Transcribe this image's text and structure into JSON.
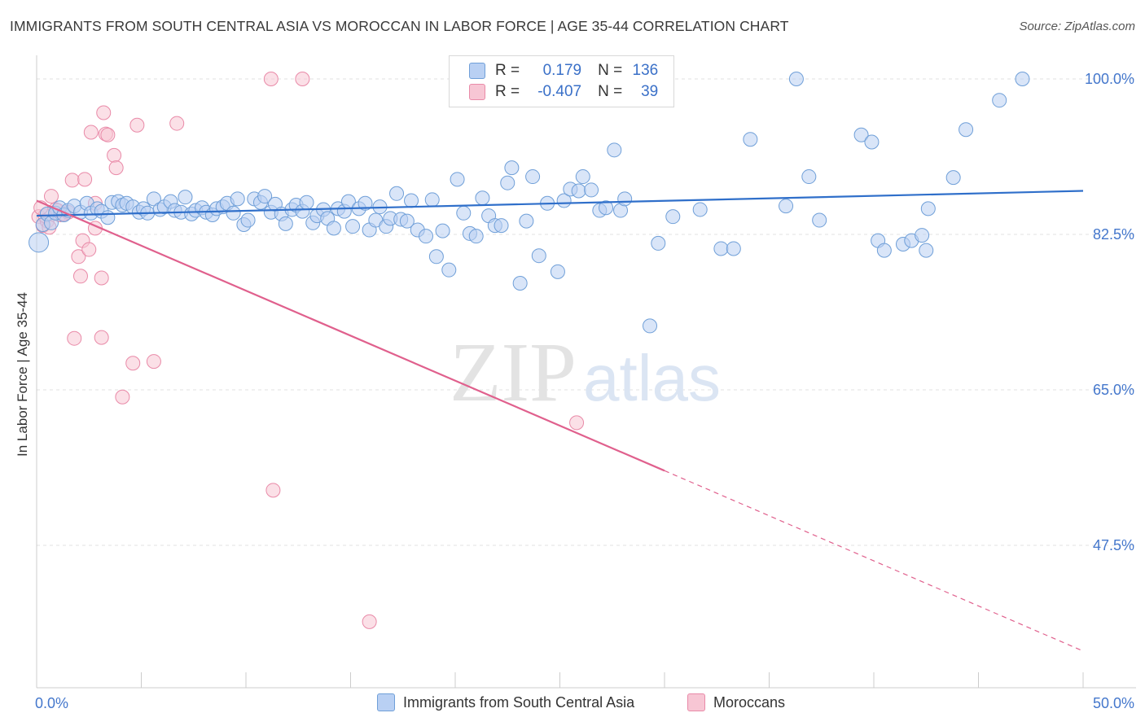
{
  "title": "IMMIGRANTS FROM SOUTH CENTRAL ASIA VS MOROCCAN IN LABOR FORCE | AGE 35-44 CORRELATION CHART",
  "source": "Source: ZipAtlas.com",
  "watermark": {
    "zip": "ZIP",
    "atlas": "atlas"
  },
  "legend_top": {
    "rows": [
      {
        "r_label": "R =",
        "r_value": "0.179",
        "n_label": "N =",
        "n_value": "136"
      },
      {
        "r_label": "R =",
        "r_value": "-0.407",
        "n_label": "N =",
        "n_value": "39"
      }
    ]
  },
  "legend_bottom": [
    "Immigrants from South Central Asia",
    "Moroccans"
  ],
  "colors": {
    "blue_fill": "#b9d0f3",
    "blue_stroke": "#6f9fd8",
    "blue_line": "#2f6fca",
    "pink_fill": "#f7c6d4",
    "pink_stroke": "#e98aa8",
    "pink_line": "#e0608d",
    "tick_label": "#4477cc",
    "grid": "#e0e0e0"
  },
  "chart_data": {
    "type": "scatter",
    "title": "IMMIGRANTS FROM SOUTH CENTRAL ASIA VS MOROCCAN IN LABOR FORCE | AGE 35-44 CORRELATION CHART",
    "xlabel": "",
    "ylabel": "In Labor Force | Age 35-44",
    "xlim": [
      0,
      50
    ],
    "ylim": [
      32.5,
      100
    ],
    "x_tick_labels": [
      "0.0%",
      "50.0%"
    ],
    "y_ticks": [
      47.5,
      65.0,
      82.5,
      100.0
    ],
    "y_tick_labels": [
      "47.5%",
      "65.0%",
      "82.5%",
      "100.0%"
    ],
    "grid": true,
    "legend_position": "top-center",
    "series": [
      {
        "name": "Immigrants from South Central Asia",
        "color": "#6f9fd8",
        "trend": {
          "x": [
            0,
            50
          ],
          "y": [
            84.6,
            87.4
          ]
        },
        "points": [
          [
            0.1,
            81.6
          ],
          [
            0.3,
            83.6
          ],
          [
            0.5,
            84.8
          ],
          [
            0.7,
            83.8
          ],
          [
            0.9,
            84.9
          ],
          [
            1.1,
            85.5
          ],
          [
            1.3,
            84.7
          ],
          [
            1.5,
            85.2
          ],
          [
            1.8,
            85.7
          ],
          [
            2.1,
            85.0
          ],
          [
            2.4,
            86.0
          ],
          [
            2.6,
            84.9
          ],
          [
            2.9,
            85.4
          ],
          [
            3.1,
            85.1
          ],
          [
            3.4,
            84.4
          ],
          [
            3.6,
            86.1
          ],
          [
            3.9,
            86.2
          ],
          [
            4.1,
            85.8
          ],
          [
            4.3,
            86.0
          ],
          [
            4.6,
            85.6
          ],
          [
            4.9,
            85.0
          ],
          [
            5.1,
            85.4
          ],
          [
            5.3,
            84.9
          ],
          [
            5.6,
            86.5
          ],
          [
            5.9,
            85.3
          ],
          [
            6.1,
            85.6
          ],
          [
            6.4,
            86.2
          ],
          [
            6.6,
            85.2
          ],
          [
            6.9,
            85.0
          ],
          [
            7.1,
            86.7
          ],
          [
            7.4,
            84.8
          ],
          [
            7.6,
            85.2
          ],
          [
            7.9,
            85.5
          ],
          [
            8.1,
            85.0
          ],
          [
            8.4,
            84.7
          ],
          [
            8.6,
            85.4
          ],
          [
            8.9,
            85.6
          ],
          [
            9.1,
            86.0
          ],
          [
            9.4,
            84.9
          ],
          [
            9.6,
            86.5
          ],
          [
            9.9,
            83.6
          ],
          [
            10.1,
            84.1
          ],
          [
            10.4,
            86.5
          ],
          [
            10.7,
            86.1
          ],
          [
            10.9,
            86.8
          ],
          [
            11.2,
            85.0
          ],
          [
            11.4,
            85.9
          ],
          [
            11.7,
            84.8
          ],
          [
            11.9,
            83.7
          ],
          [
            12.2,
            85.3
          ],
          [
            12.4,
            85.8
          ],
          [
            12.7,
            85.1
          ],
          [
            12.9,
            86.1
          ],
          [
            13.2,
            83.8
          ],
          [
            13.4,
            84.6
          ],
          [
            13.7,
            85.3
          ],
          [
            13.9,
            84.3
          ],
          [
            14.2,
            83.2
          ],
          [
            14.4,
            85.4
          ],
          [
            14.7,
            85.1
          ],
          [
            14.9,
            86.2
          ],
          [
            15.1,
            83.4
          ],
          [
            15.4,
            85.4
          ],
          [
            15.7,
            86.0
          ],
          [
            15.9,
            83.0
          ],
          [
            16.2,
            84.1
          ],
          [
            16.4,
            85.6
          ],
          [
            16.7,
            83.4
          ],
          [
            16.9,
            84.3
          ],
          [
            17.2,
            87.1
          ],
          [
            17.4,
            84.2
          ],
          [
            17.7,
            84.0
          ],
          [
            17.9,
            86.3
          ],
          [
            18.2,
            83.0
          ],
          [
            18.6,
            82.3
          ],
          [
            18.9,
            86.4
          ],
          [
            19.1,
            80.0
          ],
          [
            19.4,
            82.9
          ],
          [
            19.7,
            78.5
          ],
          [
            20.1,
            88.7
          ],
          [
            20.4,
            84.9
          ],
          [
            20.7,
            82.6
          ],
          [
            21.0,
            82.3
          ],
          [
            21.3,
            86.6
          ],
          [
            21.6,
            84.6
          ],
          [
            21.9,
            83.5
          ],
          [
            22.2,
            83.5
          ],
          [
            22.5,
            88.3
          ],
          [
            22.7,
            90.0
          ],
          [
            23.1,
            77.0
          ],
          [
            23.4,
            84.0
          ],
          [
            23.7,
            89.0
          ],
          [
            24.0,
            80.1
          ],
          [
            24.4,
            86.0
          ],
          [
            24.9,
            78.3
          ],
          [
            25.2,
            86.3
          ],
          [
            25.5,
            87.6
          ],
          [
            25.9,
            87.4
          ],
          [
            26.1,
            89.0
          ],
          [
            26.5,
            87.5
          ],
          [
            26.9,
            85.2
          ],
          [
            27.2,
            85.5
          ],
          [
            27.6,
            92.0
          ],
          [
            27.9,
            85.2
          ],
          [
            28.1,
            86.5
          ],
          [
            29.7,
            81.5
          ],
          [
            30.4,
            84.5
          ],
          [
            31.7,
            85.3
          ],
          [
            32.7,
            80.9
          ],
          [
            33.3,
            80.9
          ],
          [
            34.1,
            93.2
          ],
          [
            35.8,
            85.7
          ],
          [
            36.9,
            89.0
          ],
          [
            37.4,
            84.1
          ],
          [
            39.4,
            93.7
          ],
          [
            39.9,
            92.9
          ],
          [
            40.2,
            81.8
          ],
          [
            40.5,
            80.7
          ],
          [
            41.4,
            81.4
          ],
          [
            41.8,
            81.8
          ],
          [
            42.3,
            82.4
          ],
          [
            42.5,
            80.7
          ],
          [
            42.6,
            85.4
          ],
          [
            43.8,
            88.9
          ],
          [
            44.4,
            94.3
          ],
          [
            46.0,
            97.6
          ],
          [
            36.3,
            100.0
          ],
          [
            47.1,
            100.0
          ],
          [
            29.3,
            72.2
          ]
        ]
      },
      {
        "name": "Moroccans",
        "color": "#e98aa8",
        "trend": {
          "x": [
            0,
            30
          ],
          "y": [
            86.3,
            55.9
          ]
        },
        "trend_dashed": {
          "x": [
            30,
            50
          ],
          "y": [
            55.9,
            35.6
          ]
        },
        "points": [
          [
            0.1,
            84.5
          ],
          [
            0.3,
            83.5
          ],
          [
            0.5,
            84.0
          ],
          [
            0.7,
            86.8
          ],
          [
            0.9,
            85.3
          ],
          [
            1.1,
            84.7
          ],
          [
            1.3,
            84.8
          ],
          [
            1.5,
            85.0
          ],
          [
            1.7,
            88.6
          ],
          [
            2.0,
            80.0
          ],
          [
            2.1,
            77.8
          ],
          [
            2.2,
            81.8
          ],
          [
            2.3,
            88.7
          ],
          [
            2.5,
            80.8
          ],
          [
            2.6,
            94.0
          ],
          [
            2.8,
            83.2
          ],
          [
            2.8,
            86.0
          ],
          [
            3.1,
            77.6
          ],
          [
            3.2,
            96.2
          ],
          [
            3.3,
            93.8
          ],
          [
            3.4,
            93.7
          ],
          [
            3.7,
            91.4
          ],
          [
            3.8,
            90.0
          ],
          [
            3.1,
            70.9
          ],
          [
            4.8,
            94.8
          ],
          [
            6.7,
            95.0
          ],
          [
            1.8,
            70.8
          ],
          [
            4.6,
            68.0
          ],
          [
            5.6,
            68.2
          ],
          [
            4.1,
            64.2
          ],
          [
            11.2,
            100.0
          ],
          [
            12.7,
            100.0
          ],
          [
            11.3,
            53.7
          ],
          [
            15.9,
            38.9
          ],
          [
            25.8,
            61.3
          ],
          [
            0.4,
            84.6
          ],
          [
            0.6,
            83.3
          ],
          [
            1.0,
            85.2
          ],
          [
            0.2,
            85.5
          ]
        ]
      }
    ]
  }
}
